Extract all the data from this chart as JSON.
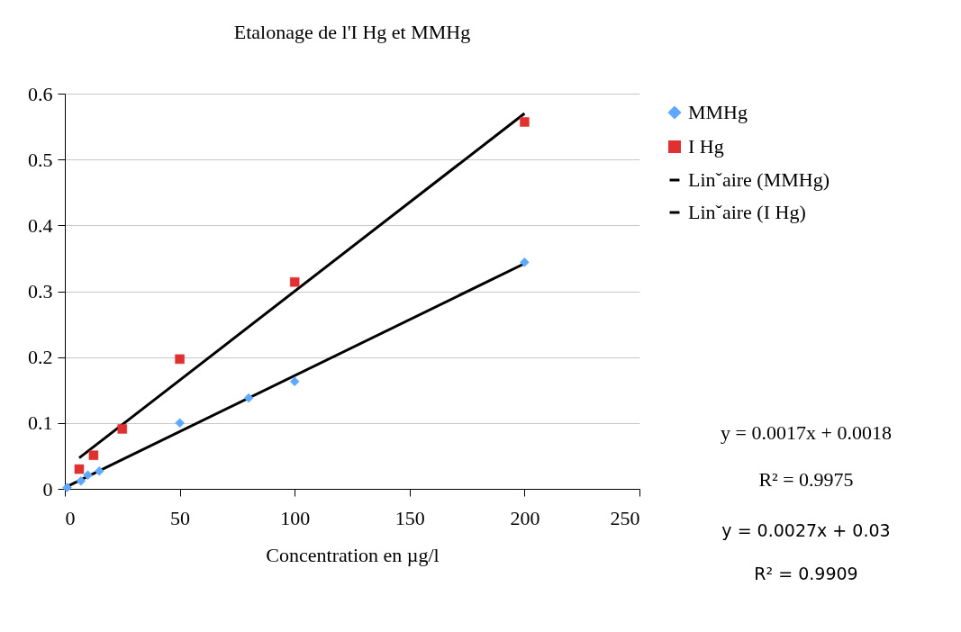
{
  "chart_data": {
    "type": "scatter",
    "title": "Etalonage de l'I Hg et MMHg",
    "xlabel": "Concentration en µg/l",
    "xlim": [
      0,
      250
    ],
    "xticks": [
      0,
      50,
      100,
      150,
      200,
      250
    ],
    "ylim": [
      0,
      0.6
    ],
    "yticks": [
      0,
      0.1,
      0.2,
      0.3,
      0.4,
      0.5,
      0.6
    ],
    "grid": "y",
    "legend": "right",
    "series": [
      {
        "name": "MMHg",
        "color": "#5fa8ff",
        "marker": "diamond",
        "x": [
          1,
          7,
          10,
          15,
          50,
          80,
          100,
          200
        ],
        "values": [
          0.002,
          0.012,
          0.021,
          0.027,
          0.1,
          0.138,
          0.163,
          0.344
        ]
      },
      {
        "name": "I Hg",
        "color": "#e03030",
        "marker": "square",
        "x": [
          6.25,
          12.5,
          25,
          50,
          100,
          200
        ],
        "values": [
          0.03,
          0.051,
          0.091,
          0.197,
          0.314,
          0.557
        ]
      },
      {
        "name": "Linˇaire (MMHg)",
        "type": "line",
        "color": "#000000",
        "x": [
          0,
          200
        ],
        "values": [
          0.002,
          0.342
        ]
      },
      {
        "name": "Linˇaire (I Hg)",
        "type": "line",
        "color": "#000000",
        "x": [
          6.25,
          200
        ],
        "values": [
          0.047,
          0.57
        ]
      }
    ],
    "annotations": [
      "y = 0.0017x + 0.0018",
      "R² = 0.9975",
      "y = 0.0027x + 0.03",
      "R² = 0.9909"
    ]
  }
}
